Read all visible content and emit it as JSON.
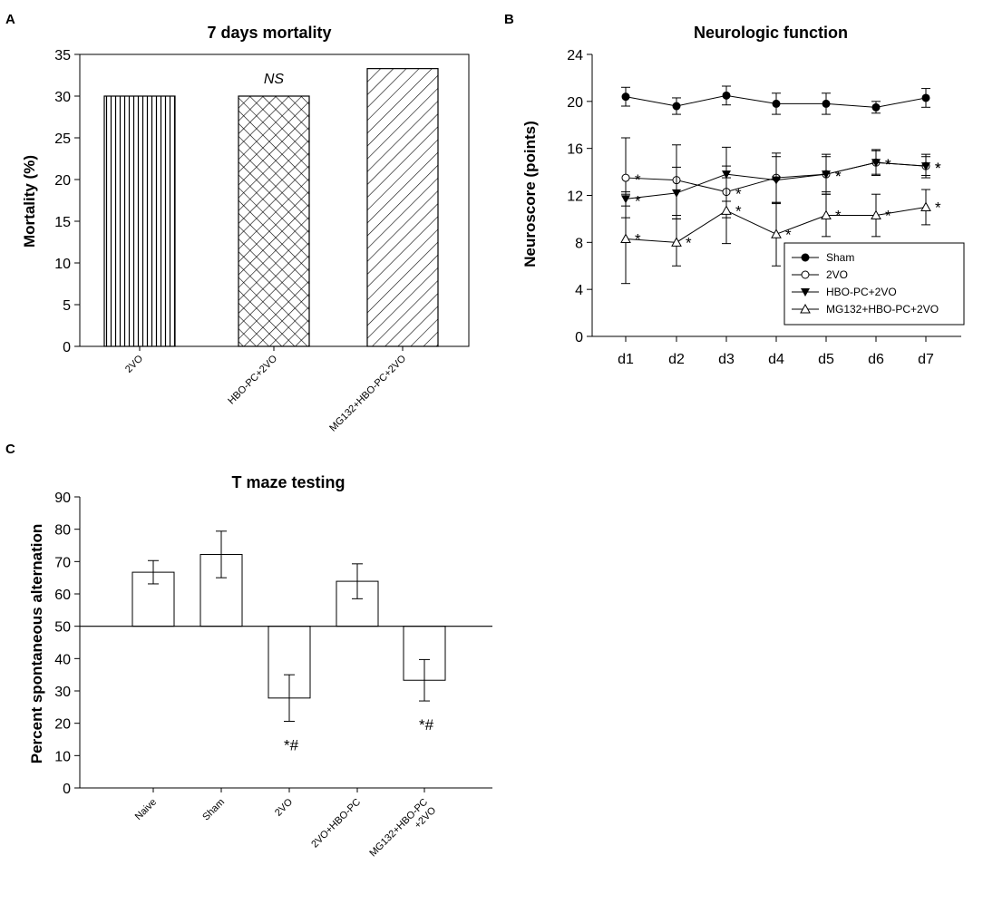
{
  "figure": {
    "panel_a": {
      "letter": "A"
    },
    "panel_b": {
      "letter": "B"
    },
    "panel_c": {
      "letter": "C"
    }
  },
  "chart_data": [
    {
      "id": "A",
      "type": "bar",
      "title": "7 days mortality",
      "xlabel": "",
      "ylabel": "Mortality (%)",
      "ylim": [
        0,
        35
      ],
      "yticks": [
        0,
        5,
        10,
        15,
        20,
        25,
        30,
        35
      ],
      "categories": [
        "2VO",
        "HBO-PC+2VO",
        "MG132+HBO-PC+2VO"
      ],
      "values": [
        30,
        30,
        33.3
      ],
      "patterns": [
        "vertical-lines",
        "crosshatch",
        "diagonal-lines"
      ],
      "annotations": [
        {
          "category": "HBO-PC+2VO",
          "text": "NS"
        }
      ]
    },
    {
      "id": "B",
      "type": "line",
      "title": "Neurologic function",
      "xlabel": "",
      "ylabel": "Neuroscore (points)",
      "ylim": [
        0,
        24
      ],
      "yticks": [
        0,
        4,
        8,
        12,
        16,
        20,
        24
      ],
      "categories": [
        "d1",
        "d2",
        "d3",
        "d4",
        "d5",
        "d6",
        "d7"
      ],
      "legend": "bottom-right",
      "series": [
        {
          "name": "Sham",
          "marker": "filled-circle",
          "values": [
            20.4,
            19.6,
            20.5,
            19.8,
            19.8,
            19.5,
            20.3
          ],
          "errors": [
            0.8,
            0.7,
            0.8,
            0.9,
            0.9,
            0.5,
            0.8
          ],
          "stars": []
        },
        {
          "name": "2VO",
          "marker": "open-circle",
          "values": [
            13.5,
            13.3,
            12.3,
            13.5,
            13.8,
            14.8,
            14.5
          ],
          "errors": [
            3.4,
            3.0,
            2.2,
            2.1,
            1.5,
            1.0,
            1.0
          ],
          "stars": [
            "d1",
            "d3",
            "d5",
            "d6",
            "d7"
          ]
        },
        {
          "name": "HBO-PC+2VO",
          "marker": "filled-triangle-down",
          "values": [
            11.7,
            12.2,
            13.8,
            13.3,
            13.8,
            14.8,
            14.5
          ],
          "errors": [
            0.6,
            2.2,
            2.3,
            2.0,
            1.7,
            1.1,
            0.8
          ],
          "stars": [
            "d1",
            "d5",
            "d6",
            "d7"
          ]
        },
        {
          "name": "MG132+HBO-PC+2VO",
          "marker": "open-triangle-up",
          "values": [
            8.3,
            8.0,
            10.7,
            8.7,
            10.3,
            10.3,
            11.0
          ],
          "errors": [
            3.8,
            2.0,
            2.8,
            2.7,
            1.8,
            1.8,
            1.5
          ],
          "stars": [
            "d1",
            "d2",
            "d3",
            "d4",
            "d5",
            "d6",
            "d7"
          ]
        }
      ]
    },
    {
      "id": "C",
      "type": "bar",
      "title": "T maze testing",
      "xlabel": "",
      "ylabel": "Percent spontaneous alternation",
      "ylim": [
        0,
        90
      ],
      "baseline": 50,
      "yticks": [
        0,
        10,
        20,
        30,
        40,
        50,
        60,
        70,
        80,
        90
      ],
      "categories": [
        "Naive",
        "Sham",
        "2VO",
        "2VO+HBO-PC",
        "MG132+HBO-PC\n+2VO"
      ],
      "values": [
        66.7,
        72.2,
        27.8,
        63.9,
        33.3
      ],
      "errors": [
        3.6,
        7.2,
        7.2,
        5.4,
        6.4
      ],
      "annotations": [
        {
          "category": "2VO",
          "text": "*#"
        },
        {
          "category": "MG132+HBO-PC\n+2VO",
          "text": "*#"
        }
      ]
    }
  ]
}
